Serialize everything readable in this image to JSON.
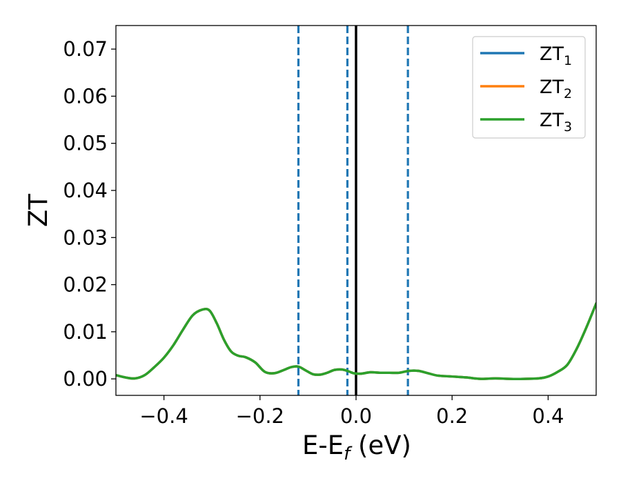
{
  "chart_data": {
    "type": "line",
    "title": "",
    "xlabel": "E-E",
    "xlabel_sub": "f",
    "xlabel_unit": " (eV)",
    "ylabel": "ZT",
    "xlim": [
      -0.5,
      0.5
    ],
    "ylim": [
      -0.0035,
      0.075
    ],
    "xticks": [
      -0.4,
      -0.2,
      0.0,
      0.2,
      0.4
    ],
    "xtick_labels": [
      "−0.4",
      "−0.2",
      "0.0",
      "0.2",
      "0.4"
    ],
    "yticks": [
      0.0,
      0.01,
      0.02,
      0.03,
      0.04,
      0.05,
      0.06,
      0.07
    ],
    "ytick_labels": [
      "0.00",
      "0.01",
      "0.02",
      "0.03",
      "0.04",
      "0.05",
      "0.06",
      "0.07"
    ],
    "grid": false,
    "legend_position": "top-right",
    "vlines": [
      {
        "x": -0.12,
        "style": "dashed",
        "color": "#1f77b4"
      },
      {
        "x": -0.018,
        "style": "dashed",
        "color": "#1f77b4"
      },
      {
        "x": 0.0,
        "style": "solid",
        "color": "#000000"
      },
      {
        "x": 0.108,
        "style": "dashed",
        "color": "#1f77b4"
      }
    ],
    "x": [
      -0.5,
      -0.48,
      -0.46,
      -0.44,
      -0.42,
      -0.4,
      -0.38,
      -0.36,
      -0.34,
      -0.32,
      -0.305,
      -0.29,
      -0.275,
      -0.26,
      -0.245,
      -0.23,
      -0.21,
      -0.19,
      -0.17,
      -0.15,
      -0.135,
      -0.12,
      -0.105,
      -0.09,
      -0.075,
      -0.06,
      -0.045,
      -0.03,
      -0.018,
      -0.005,
      0.01,
      0.03,
      0.05,
      0.07,
      0.09,
      0.11,
      0.13,
      0.15,
      0.17,
      0.2,
      0.23,
      0.26,
      0.29,
      0.32,
      0.35,
      0.38,
      0.4,
      0.42,
      0.44,
      0.46,
      0.48,
      0.5
    ],
    "series": [
      {
        "name": "ZT",
        "name_sub": "1",
        "color": "#1f77b4",
        "values": [
          0.0008,
          0.0003,
          0.0001,
          0.0008,
          0.0025,
          0.0045,
          0.0072,
          0.0105,
          0.0135,
          0.0147,
          0.0145,
          0.0118,
          0.0083,
          0.0058,
          0.0049,
          0.0046,
          0.0035,
          0.0015,
          0.0012,
          0.0019,
          0.0025,
          0.0026,
          0.0018,
          0.001,
          0.0009,
          0.0013,
          0.0019,
          0.002,
          0.0017,
          0.0012,
          0.0011,
          0.0014,
          0.0013,
          0.0013,
          0.0013,
          0.0017,
          0.0017,
          0.0012,
          0.0007,
          0.0005,
          0.0003,
          0.0,
          0.0001,
          0.0,
          0.0,
          0.0001,
          0.0005,
          0.0015,
          0.003,
          0.0065,
          0.011,
          0.016
        ]
      },
      {
        "name": "ZT",
        "name_sub": "2",
        "color": "#ff7f0e",
        "values": [
          0.0008,
          0.0003,
          0.0001,
          0.0008,
          0.0025,
          0.0045,
          0.0072,
          0.0105,
          0.0135,
          0.0147,
          0.0145,
          0.0118,
          0.0083,
          0.0058,
          0.0049,
          0.0046,
          0.0035,
          0.0015,
          0.0012,
          0.0019,
          0.0025,
          0.0026,
          0.0018,
          0.001,
          0.0009,
          0.0013,
          0.0019,
          0.002,
          0.0017,
          0.0012,
          0.0011,
          0.0014,
          0.0013,
          0.0013,
          0.0013,
          0.0017,
          0.0017,
          0.0012,
          0.0007,
          0.0005,
          0.0003,
          0.0,
          0.0001,
          0.0,
          0.0,
          0.0001,
          0.0005,
          0.0015,
          0.003,
          0.0065,
          0.011,
          0.016
        ]
      },
      {
        "name": "ZT",
        "name_sub": "3",
        "color": "#2ca02c",
        "values": [
          0.0008,
          0.0003,
          0.0001,
          0.0008,
          0.0025,
          0.0045,
          0.0072,
          0.0105,
          0.0135,
          0.0147,
          0.0145,
          0.0118,
          0.0083,
          0.0058,
          0.0049,
          0.0046,
          0.0035,
          0.0015,
          0.0012,
          0.0019,
          0.0025,
          0.0026,
          0.0018,
          0.001,
          0.0009,
          0.0013,
          0.0019,
          0.002,
          0.0017,
          0.0012,
          0.0011,
          0.0014,
          0.0013,
          0.0013,
          0.0013,
          0.0017,
          0.0017,
          0.0012,
          0.0007,
          0.0005,
          0.0003,
          0.0,
          0.0001,
          0.0,
          0.0,
          0.0001,
          0.0005,
          0.0015,
          0.003,
          0.0065,
          0.011,
          0.016
        ]
      }
    ]
  }
}
